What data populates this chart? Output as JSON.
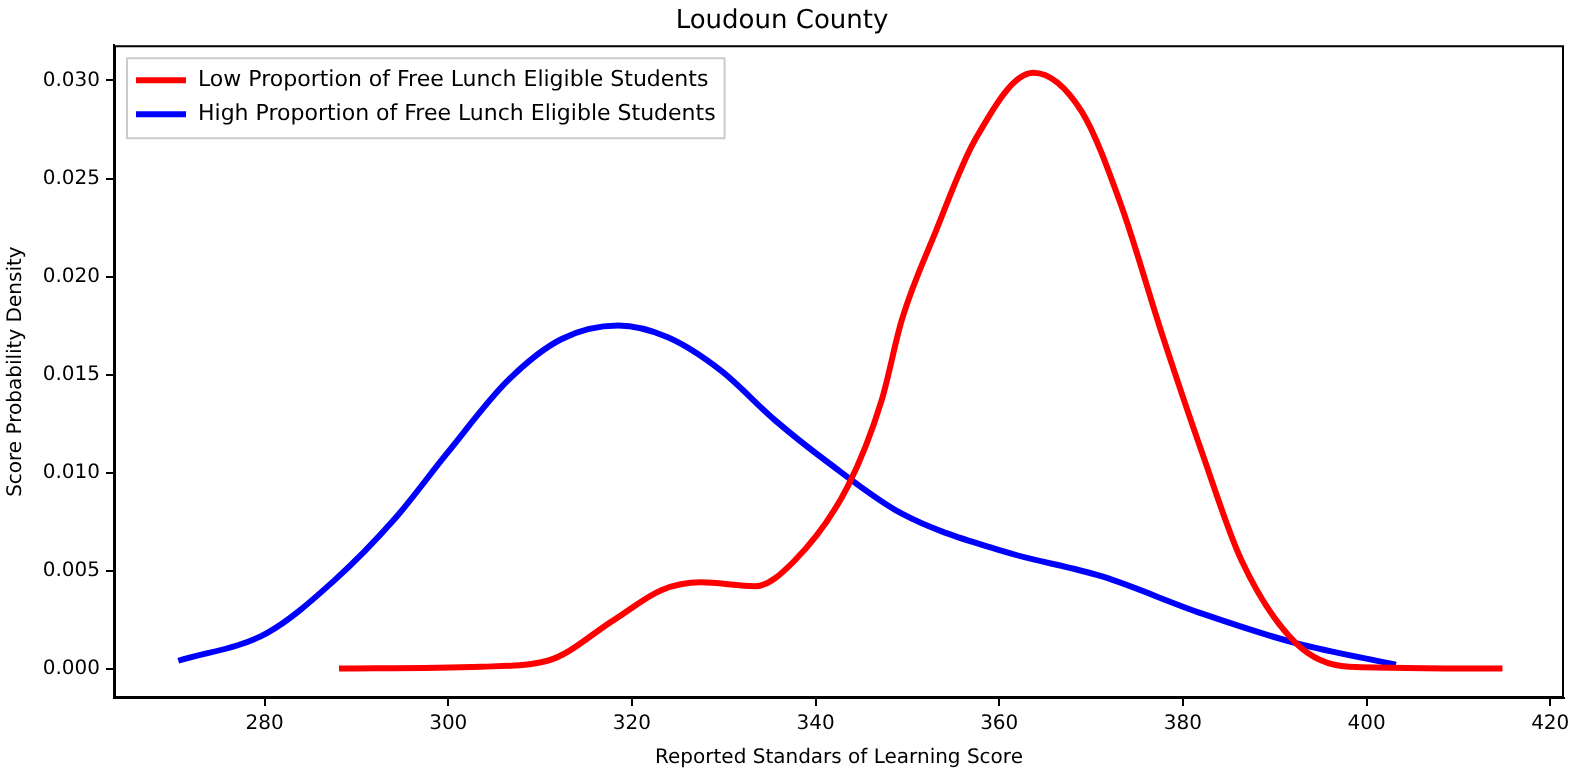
{
  "chart_data": {
    "type": "line",
    "title": "Loudoun County",
    "xlabel": "Reported Standars of Learning Score",
    "ylabel": "Score Probability Density",
    "xlim": [
      263.6,
      421.5
    ],
    "xticks": [
      280,
      300,
      320,
      340,
      360,
      380,
      400,
      420
    ],
    "ylim": [
      -0.0015,
      0.0318
    ],
    "yticks": [
      {
        "value": 0,
        "label": "0.000"
      },
      {
        "value": 0.005,
        "label": "0.005"
      },
      {
        "value": 0.01,
        "label": "0.010"
      },
      {
        "value": 0.015,
        "label": "0.015"
      },
      {
        "value": 0.02,
        "label": "0.020"
      },
      {
        "value": 0.025,
        "label": "0.025"
      },
      {
        "value": 0.03,
        "label": "0.030"
      }
    ],
    "grid": false,
    "legend": "top left",
    "marker": "none",
    "line_style": "solid",
    "series": [
      {
        "name": "Low Proportion of Free Lunch Eligible Students",
        "color": "#ff0000",
        "x": [
          288.1,
          303.6,
          310.8,
          318.1,
          323.2,
          327.5,
          333.4,
          337.7,
          343.5,
          347.2,
          349.4,
          353,
          357.4,
          363.7,
          369,
          373.3,
          377.7,
          382.1,
          386.4,
          392.3,
          398.1,
          414.8
        ],
        "values": [
          0,
          0.0001,
          0.0004,
          0.0025,
          0.004,
          0.0044,
          0.0042,
          0.0055,
          0.0093,
          0.0137,
          0.0178,
          0.0222,
          0.027,
          0.0304,
          0.0284,
          0.0236,
          0.0171,
          0.011,
          0.0055,
          0.0013,
          0.0001,
          0
        ]
      },
      {
        "name": "High Proportion of Free Lunch Eligible Students",
        "color": "#0000ff",
        "x": [
          270.6,
          280.2,
          287.6,
          294.1,
          299.9,
          306.5,
          312.3,
          318.5,
          323.9,
          329.7,
          335.5,
          341.4,
          349.4,
          360.3,
          371.2,
          382.1,
          392.3,
          403.2
        ],
        "values": [
          0.0004,
          0.0018,
          0.0045,
          0.0076,
          0.011,
          0.0147,
          0.0168,
          0.0175,
          0.0169,
          0.0152,
          0.0127,
          0.0105,
          0.0079,
          0.006,
          0.0047,
          0.0028,
          0.0013,
          0.0002
        ]
      }
    ]
  }
}
